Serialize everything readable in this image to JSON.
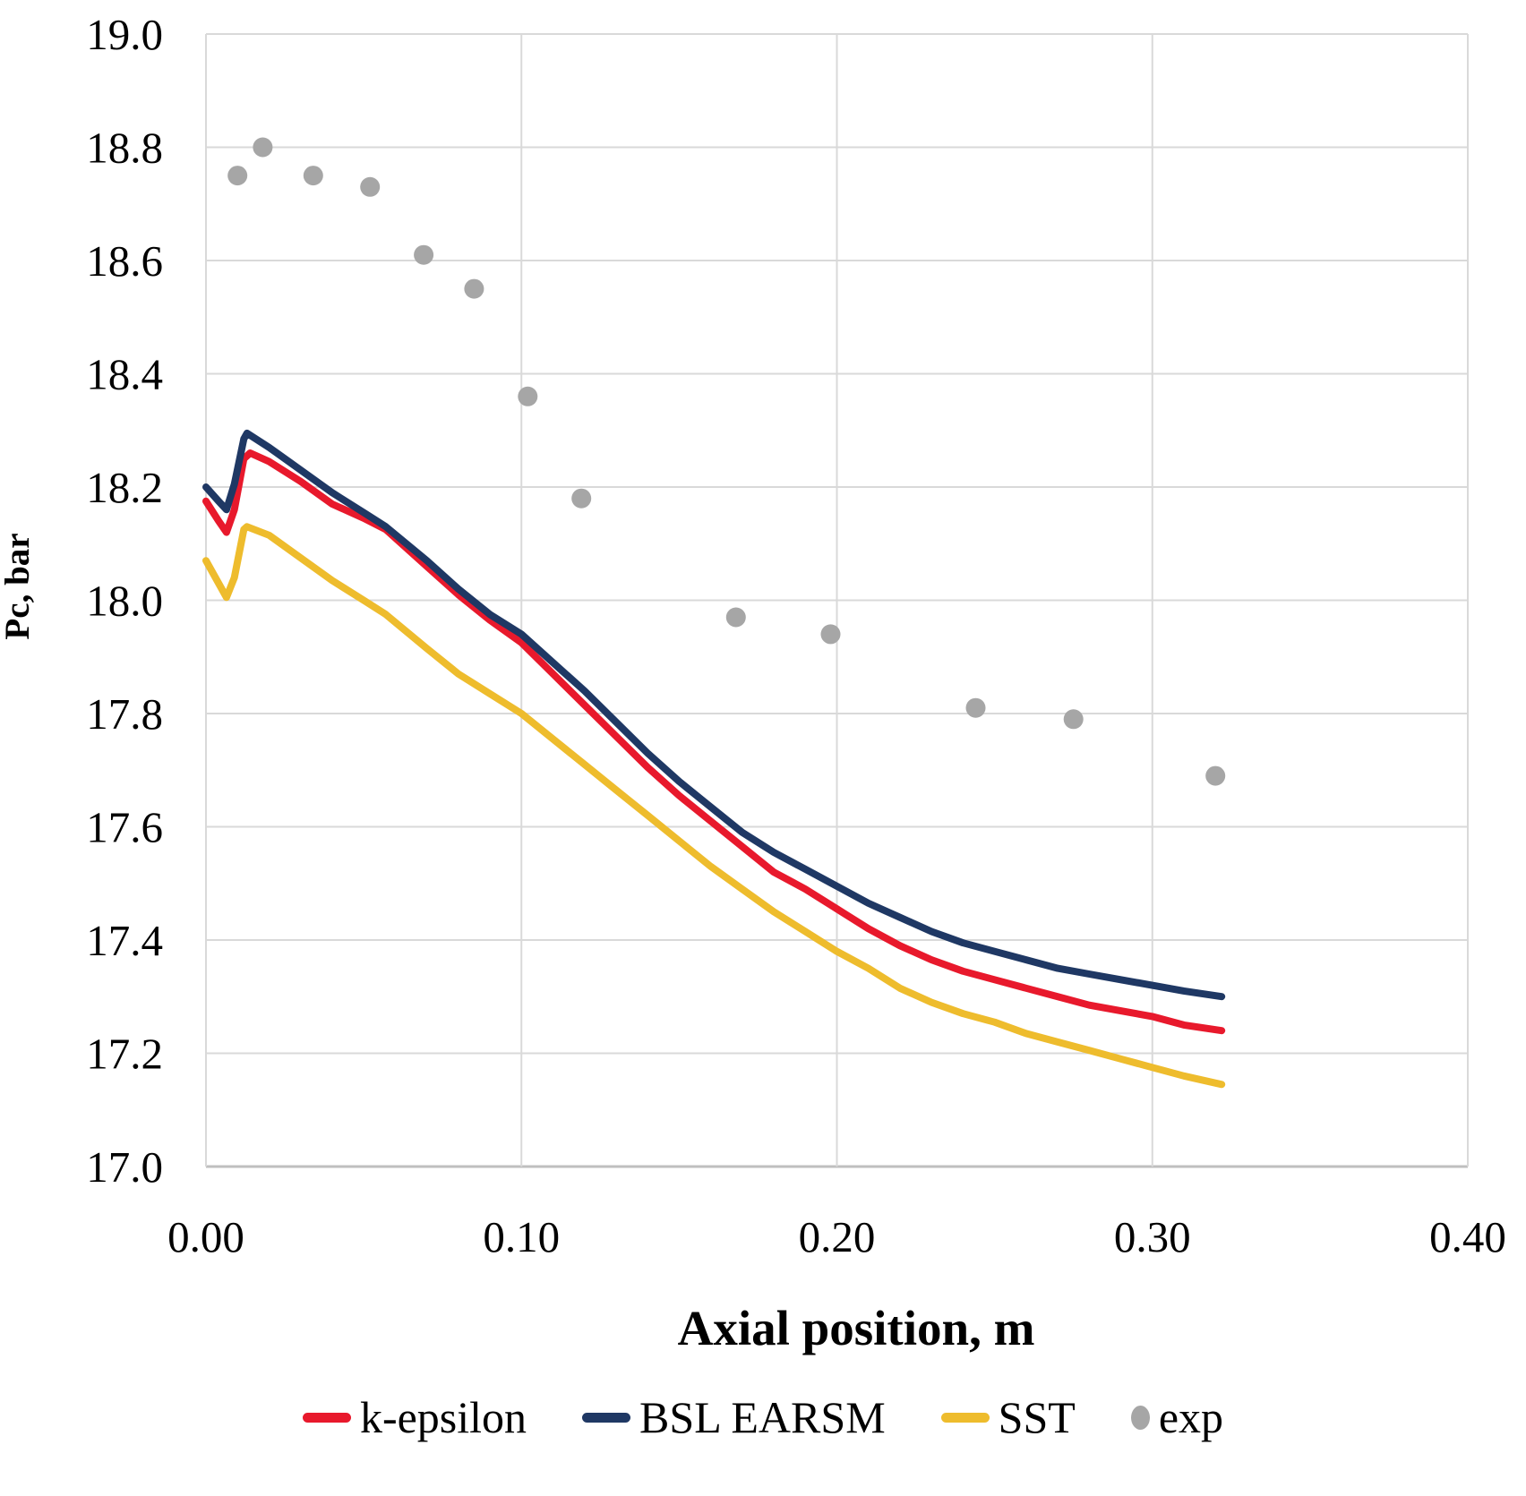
{
  "chart_data": {
    "type": "line",
    "title": "",
    "xlabel": "Axial position, m",
    "ylabel": "Pc, bar",
    "xlim": [
      0.0,
      0.4
    ],
    "ylim": [
      17.0,
      19.0
    ],
    "grid": true,
    "legend_position": "bottom",
    "x_ticks": [
      {
        "value": 0.0,
        "label": "0.00"
      },
      {
        "value": 0.1,
        "label": "0.10"
      },
      {
        "value": 0.2,
        "label": "0.20"
      },
      {
        "value": 0.3,
        "label": "0.30"
      },
      {
        "value": 0.4,
        "label": "0.40"
      }
    ],
    "y_ticks": [
      {
        "value": 17.0,
        "label": "17.0"
      },
      {
        "value": 17.2,
        "label": "17.2"
      },
      {
        "value": 17.4,
        "label": "17.4"
      },
      {
        "value": 17.6,
        "label": "17.6"
      },
      {
        "value": 17.8,
        "label": "17.8"
      },
      {
        "value": 18.0,
        "label": "18.0"
      },
      {
        "value": 18.2,
        "label": "18.2"
      },
      {
        "value": 18.4,
        "label": "18.4"
      },
      {
        "value": 18.6,
        "label": "18.6"
      },
      {
        "value": 18.8,
        "label": "18.8"
      },
      {
        "value": 19.0,
        "label": "19.0"
      }
    ],
    "series": [
      {
        "name": "k-epsilon",
        "type": "line",
        "color": "#e8192c",
        "points": [
          [
            0.0,
            18.175
          ],
          [
            0.004,
            18.14
          ],
          [
            0.0065,
            18.12
          ],
          [
            0.009,
            18.16
          ],
          [
            0.012,
            18.25
          ],
          [
            0.014,
            18.26
          ],
          [
            0.02,
            18.245
          ],
          [
            0.03,
            18.21
          ],
          [
            0.04,
            18.17
          ],
          [
            0.05,
            18.145
          ],
          [
            0.057,
            18.125
          ],
          [
            0.07,
            18.06
          ],
          [
            0.08,
            18.01
          ],
          [
            0.09,
            17.965
          ],
          [
            0.1,
            17.925
          ],
          [
            0.11,
            17.87
          ],
          [
            0.12,
            17.815
          ],
          [
            0.13,
            17.76
          ],
          [
            0.14,
            17.705
          ],
          [
            0.15,
            17.655
          ],
          [
            0.16,
            17.61
          ],
          [
            0.17,
            17.565
          ],
          [
            0.18,
            17.52
          ],
          [
            0.19,
            17.49
          ],
          [
            0.2,
            17.455
          ],
          [
            0.21,
            17.42
          ],
          [
            0.22,
            17.39
          ],
          [
            0.23,
            17.365
          ],
          [
            0.24,
            17.345
          ],
          [
            0.25,
            17.33
          ],
          [
            0.26,
            17.315
          ],
          [
            0.27,
            17.3
          ],
          [
            0.28,
            17.285
          ],
          [
            0.29,
            17.275
          ],
          [
            0.3,
            17.265
          ],
          [
            0.31,
            17.25
          ],
          [
            0.322,
            17.24
          ]
        ]
      },
      {
        "name": "BSL EARSM",
        "type": "line",
        "color": "#1f3864",
        "points": [
          [
            0.0,
            18.2
          ],
          [
            0.004,
            18.175
          ],
          [
            0.0065,
            18.16
          ],
          [
            0.009,
            18.205
          ],
          [
            0.012,
            18.285
          ],
          [
            0.013,
            18.295
          ],
          [
            0.02,
            18.27
          ],
          [
            0.03,
            18.23
          ],
          [
            0.04,
            18.19
          ],
          [
            0.05,
            18.155
          ],
          [
            0.057,
            18.13
          ],
          [
            0.07,
            18.07
          ],
          [
            0.08,
            18.02
          ],
          [
            0.09,
            17.975
          ],
          [
            0.1,
            17.94
          ],
          [
            0.11,
            17.89
          ],
          [
            0.12,
            17.84
          ],
          [
            0.13,
            17.785
          ],
          [
            0.14,
            17.73
          ],
          [
            0.15,
            17.68
          ],
          [
            0.16,
            17.635
          ],
          [
            0.17,
            17.59
          ],
          [
            0.18,
            17.555
          ],
          [
            0.19,
            17.525
          ],
          [
            0.2,
            17.495
          ],
          [
            0.21,
            17.465
          ],
          [
            0.22,
            17.44
          ],
          [
            0.23,
            17.415
          ],
          [
            0.24,
            17.395
          ],
          [
            0.25,
            17.38
          ],
          [
            0.26,
            17.365
          ],
          [
            0.27,
            17.35
          ],
          [
            0.28,
            17.34
          ],
          [
            0.29,
            17.33
          ],
          [
            0.3,
            17.32
          ],
          [
            0.31,
            17.31
          ],
          [
            0.322,
            17.3
          ]
        ]
      },
      {
        "name": "SST",
        "type": "line",
        "color": "#eebc2d",
        "points": [
          [
            0.0,
            18.07
          ],
          [
            0.004,
            18.03
          ],
          [
            0.0065,
            18.005
          ],
          [
            0.009,
            18.04
          ],
          [
            0.012,
            18.125
          ],
          [
            0.013,
            18.13
          ],
          [
            0.02,
            18.115
          ],
          [
            0.03,
            18.075
          ],
          [
            0.04,
            18.035
          ],
          [
            0.05,
            18.0
          ],
          [
            0.057,
            17.975
          ],
          [
            0.07,
            17.915
          ],
          [
            0.08,
            17.87
          ],
          [
            0.09,
            17.835
          ],
          [
            0.1,
            17.8
          ],
          [
            0.11,
            17.755
          ],
          [
            0.12,
            17.71
          ],
          [
            0.13,
            17.665
          ],
          [
            0.14,
            17.62
          ],
          [
            0.15,
            17.575
          ],
          [
            0.16,
            17.53
          ],
          [
            0.17,
            17.49
          ],
          [
            0.18,
            17.45
          ],
          [
            0.19,
            17.415
          ],
          [
            0.2,
            17.38
          ],
          [
            0.21,
            17.35
          ],
          [
            0.22,
            17.315
          ],
          [
            0.23,
            17.29
          ],
          [
            0.24,
            17.27
          ],
          [
            0.25,
            17.255
          ],
          [
            0.26,
            17.235
          ],
          [
            0.27,
            17.22
          ],
          [
            0.28,
            17.205
          ],
          [
            0.29,
            17.19
          ],
          [
            0.3,
            17.175
          ],
          [
            0.31,
            17.16
          ],
          [
            0.322,
            17.145
          ]
        ]
      },
      {
        "name": "exp",
        "type": "scatter",
        "color": "#a6a6a6",
        "points": [
          [
            0.01,
            18.75
          ],
          [
            0.018,
            18.8
          ],
          [
            0.034,
            18.75
          ],
          [
            0.052,
            18.73
          ],
          [
            0.069,
            18.61
          ],
          [
            0.085,
            18.55
          ],
          [
            0.102,
            18.36
          ],
          [
            0.119,
            18.18
          ],
          [
            0.168,
            17.97
          ],
          [
            0.198,
            17.94
          ],
          [
            0.244,
            17.81
          ],
          [
            0.275,
            17.79
          ],
          [
            0.32,
            17.69
          ]
        ]
      }
    ]
  },
  "colors": {
    "background": "#ffffff",
    "gridline": "#d9d9d9",
    "axis_line": "#bfbfbf",
    "text": "#000000"
  }
}
